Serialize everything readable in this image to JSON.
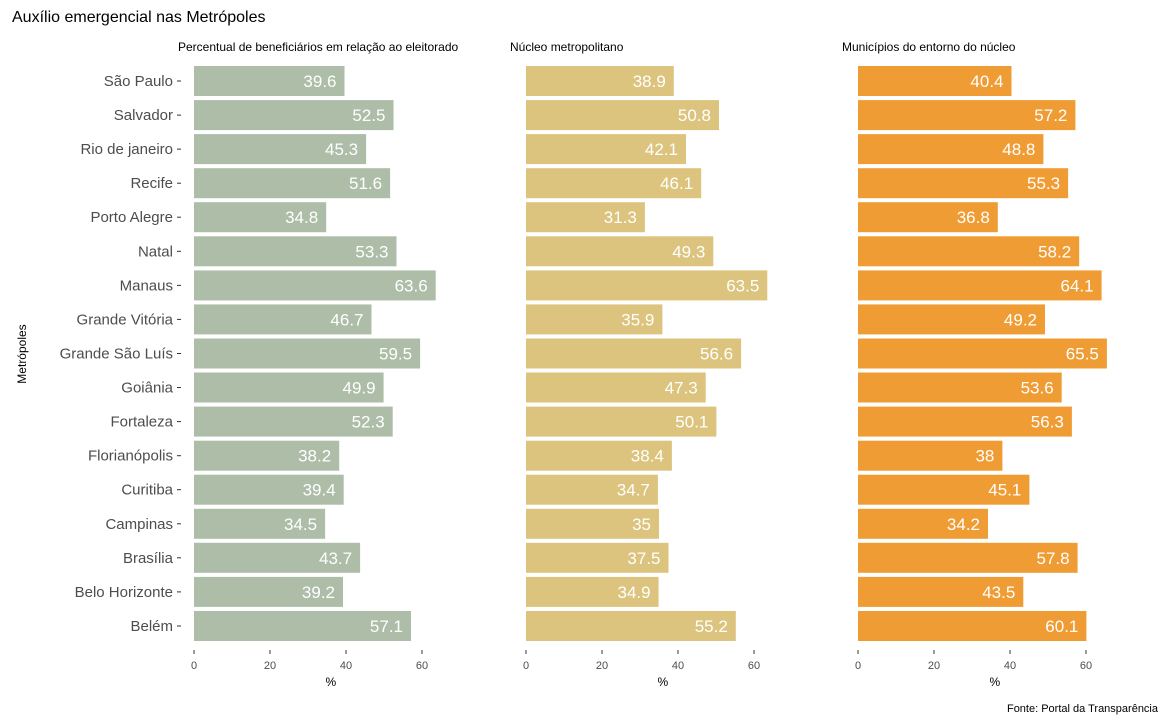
{
  "title": "Auxílio emergencial nas Metrópoles",
  "y_axis_title": "Metrópoles",
  "caption": "Fonte: Portal da Transparência",
  "colors": {
    "panel_1": "#adbda8",
    "panel_2": "#dcc47e",
    "panel_3": "#f09c34",
    "label_text": "#ffffff",
    "axis_text": "#4d4d4d"
  },
  "chart_data": [
    {
      "type": "bar",
      "orientation": "horizontal",
      "title": "Percentual de beneficiários em relação ao eleitorado",
      "xlabel": "%",
      "ylabel": "Metrópoles",
      "xlim": [
        0,
        67
      ],
      "xticks": [
        0,
        20,
        40,
        60
      ],
      "grid": false,
      "categories": [
        "São Paulo",
        "Salvador",
        "Rio de janeiro",
        "Recife",
        "Porto Alegre",
        "Natal",
        "Manaus",
        "Grande Vitória",
        "Grande São Luís",
        "Goiânia",
        "Fortaleza",
        "Florianópolis",
        "Curitiba",
        "Campinas",
        "Brasília",
        "Belo Horizonte",
        "Belém"
      ],
      "values": [
        39.6,
        52.5,
        45.3,
        51.6,
        34.8,
        53.3,
        63.6,
        46.7,
        59.5,
        49.9,
        52.3,
        38.2,
        39.4,
        34.5,
        43.7,
        39.2,
        57.1
      ]
    },
    {
      "type": "bar",
      "orientation": "horizontal",
      "title": "Núcleo metropolitano",
      "xlabel": "%",
      "ylabel": "",
      "xlim": [
        0,
        67
      ],
      "xticks": [
        0,
        20,
        40,
        60
      ],
      "grid": false,
      "categories": [
        "São Paulo",
        "Salvador",
        "Rio de janeiro",
        "Recife",
        "Porto Alegre",
        "Natal",
        "Manaus",
        "Grande Vitória",
        "Grande São Luís",
        "Goiânia",
        "Fortaleza",
        "Florianópolis",
        "Curitiba",
        "Campinas",
        "Brasília",
        "Belo Horizonte",
        "Belém"
      ],
      "values": [
        38.9,
        50.8,
        42.1,
        46.1,
        31.3,
        49.3,
        63.5,
        35.9,
        56.6,
        47.3,
        50.1,
        38.4,
        34.7,
        35,
        37.5,
        34.9,
        55.2
      ]
    },
    {
      "type": "bar",
      "orientation": "horizontal",
      "title": "Municípios do entorno do núcleo",
      "xlabel": "%",
      "ylabel": "",
      "xlim": [
        0,
        67
      ],
      "xticks": [
        0,
        20,
        40,
        60
      ],
      "grid": false,
      "categories": [
        "São Paulo",
        "Salvador",
        "Rio de janeiro",
        "Recife",
        "Porto Alegre",
        "Natal",
        "Manaus",
        "Grande Vitória",
        "Grande São Luís",
        "Goiânia",
        "Fortaleza",
        "Florianópolis",
        "Curitiba",
        "Campinas",
        "Brasília",
        "Belo Horizonte",
        "Belém"
      ],
      "values": [
        40.4,
        57.2,
        48.8,
        55.3,
        36.8,
        58.2,
        64.1,
        49.2,
        65.5,
        53.6,
        56.3,
        38,
        45.1,
        34.2,
        57.8,
        43.5,
        60.1
      ]
    }
  ]
}
